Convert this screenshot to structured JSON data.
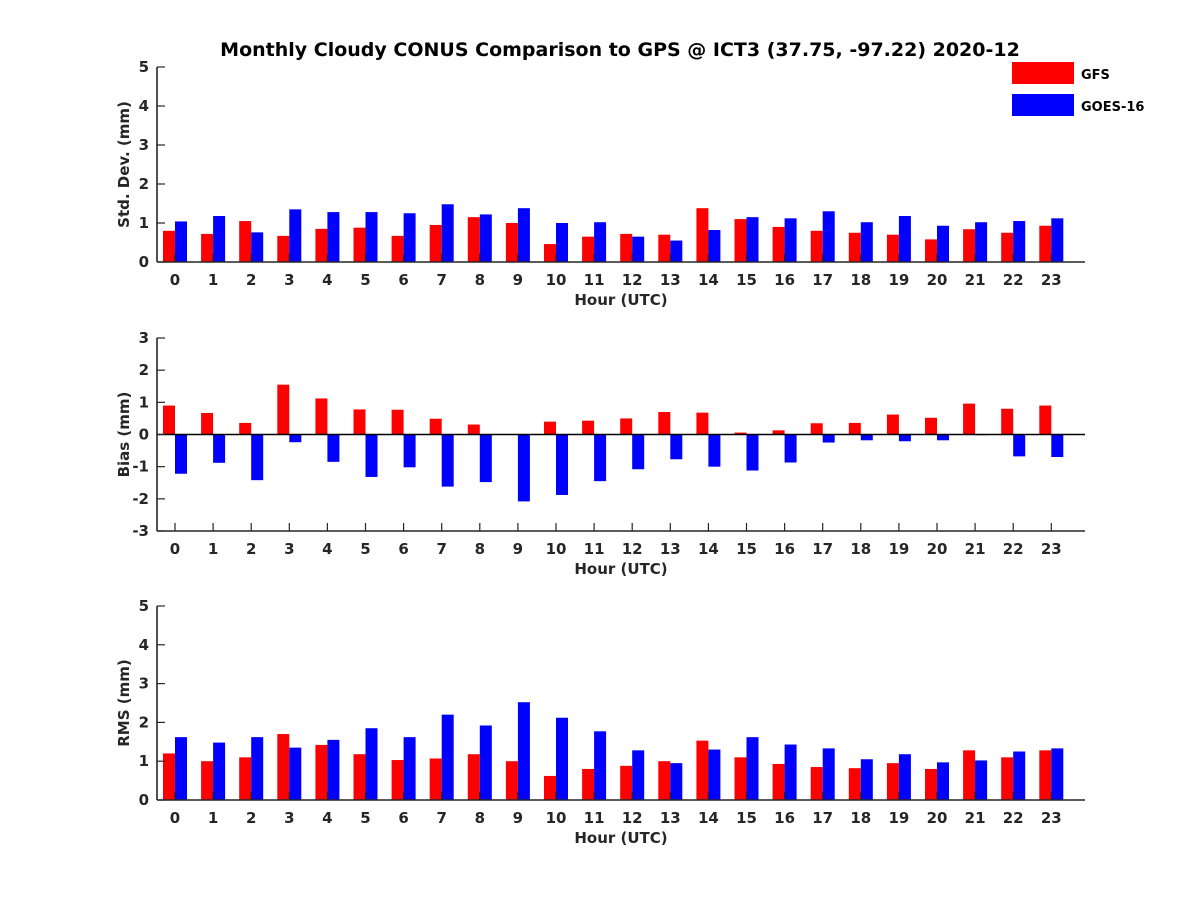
{
  "chart_data": [
    {
      "type": "bar",
      "title": "Monthly Cloudy CONUS Comparison to GPS @ ICT3 (37.75, -97.22) 2020-12",
      "xlabel": "Hour (UTC)",
      "ylabel": "Std. Dev. (mm)",
      "ylim": [
        0,
        5
      ],
      "yticks": [
        "0",
        "1",
        "2",
        "3",
        "4",
        "5"
      ],
      "categories": [
        "0",
        "1",
        "2",
        "3",
        "4",
        "5",
        "6",
        "7",
        "8",
        "9",
        "10",
        "11",
        "12",
        "13",
        "14",
        "15",
        "16",
        "17",
        "18",
        "19",
        "20",
        "21",
        "22",
        "23"
      ],
      "legend_position": "top-right",
      "series": [
        {
          "name": "GFS",
          "color": "#ff0000",
          "values": [
            0.8,
            0.72,
            1.05,
            0.67,
            0.85,
            0.88,
            0.67,
            0.95,
            1.15,
            1.0,
            0.46,
            0.65,
            0.72,
            0.7,
            1.38,
            1.1,
            0.9,
            0.8,
            0.75,
            0.7,
            0.58,
            0.84,
            0.75,
            0.93
          ]
        },
        {
          "name": "GOES-16",
          "color": "#0000ff",
          "values": [
            1.04,
            1.18,
            0.76,
            1.35,
            1.28,
            1.28,
            1.25,
            1.48,
            1.22,
            1.38,
            1.0,
            1.02,
            0.65,
            0.55,
            0.82,
            1.15,
            1.12,
            1.3,
            1.02,
            1.18,
            0.93,
            1.02,
            1.05,
            1.12
          ]
        }
      ]
    },
    {
      "type": "bar",
      "xlabel": "Hour (UTC)",
      "ylabel": "Bias (mm)",
      "ylim": [
        -3,
        3
      ],
      "yticks": [
        "-3",
        "-2",
        "-1",
        "0",
        "1",
        "2",
        "3"
      ],
      "categories": [
        "0",
        "1",
        "2",
        "3",
        "4",
        "5",
        "6",
        "7",
        "8",
        "9",
        "10",
        "11",
        "12",
        "13",
        "14",
        "15",
        "16",
        "17",
        "18",
        "19",
        "20",
        "21",
        "22",
        "23"
      ],
      "zero_line": true,
      "series": [
        {
          "name": "GFS",
          "color": "#ff0000",
          "values": [
            0.9,
            0.67,
            0.36,
            1.55,
            1.12,
            0.78,
            0.77,
            0.49,
            0.31,
            0.0,
            0.4,
            0.43,
            0.5,
            0.7,
            0.68,
            0.06,
            0.13,
            0.35,
            0.36,
            0.62,
            0.52,
            0.96,
            0.8,
            0.9
          ]
        },
        {
          "name": "GOES-16",
          "color": "#0000ff",
          "values": [
            -1.22,
            -0.88,
            -1.42,
            -0.24,
            -0.85,
            -1.32,
            -1.02,
            -1.62,
            -1.48,
            -2.08,
            -1.88,
            -1.45,
            -1.08,
            -0.77,
            -1.0,
            -1.12,
            -0.87,
            -0.25,
            -0.18,
            -0.21,
            -0.18,
            -0.02,
            -0.68,
            -0.7
          ]
        }
      ]
    },
    {
      "type": "bar",
      "xlabel": "Hour (UTC)",
      "ylabel": "RMS (mm)",
      "ylim": [
        0,
        5
      ],
      "yticks": [
        "0",
        "1",
        "2",
        "3",
        "4",
        "5"
      ],
      "categories": [
        "0",
        "1",
        "2",
        "3",
        "4",
        "5",
        "6",
        "7",
        "8",
        "9",
        "10",
        "11",
        "12",
        "13",
        "14",
        "15",
        "16",
        "17",
        "18",
        "19",
        "20",
        "21",
        "22",
        "23"
      ],
      "series": [
        {
          "name": "GFS",
          "color": "#ff0000",
          "values": [
            1.2,
            1.0,
            1.1,
            1.7,
            1.42,
            1.18,
            1.03,
            1.07,
            1.18,
            1.0,
            0.62,
            0.8,
            0.88,
            1.0,
            1.53,
            1.1,
            0.93,
            0.85,
            0.82,
            0.95,
            0.8,
            1.28,
            1.1,
            1.28
          ]
        },
        {
          "name": "GOES-16",
          "color": "#0000ff",
          "values": [
            1.62,
            1.48,
            1.62,
            1.35,
            1.55,
            1.85,
            1.62,
            2.2,
            1.92,
            2.52,
            2.12,
            1.77,
            1.28,
            0.95,
            1.3,
            1.62,
            1.43,
            1.33,
            1.05,
            1.18,
            0.97,
            1.02,
            1.25,
            1.33
          ]
        }
      ]
    }
  ]
}
